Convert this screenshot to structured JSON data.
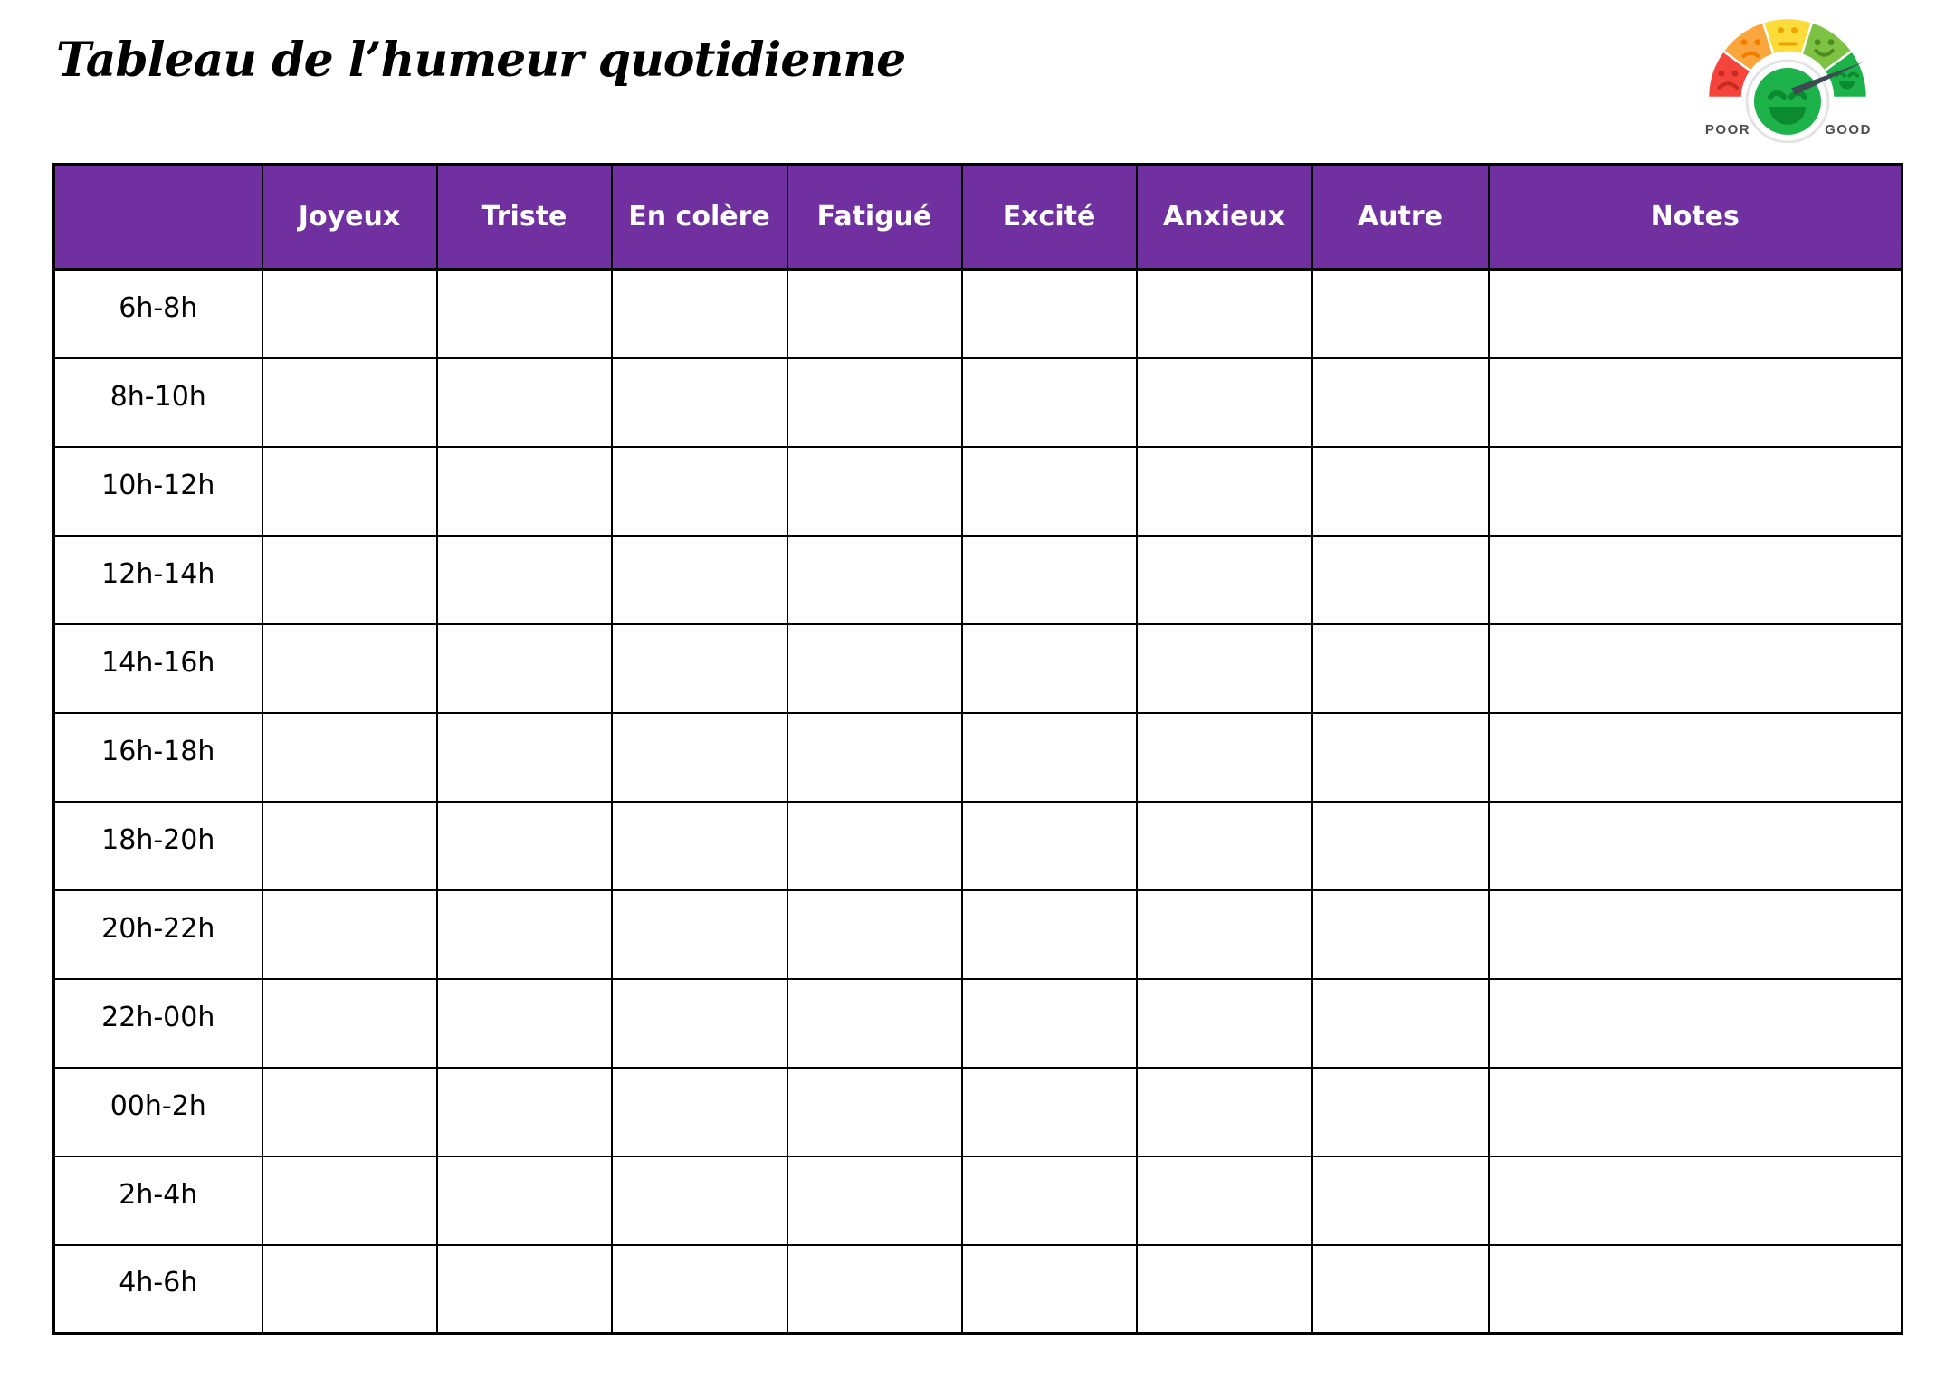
{
  "page": {
    "title": "Tableau de l’humeur quotidienne"
  },
  "mood_meter": {
    "poor_label": "POOR",
    "good_label": "GOOD",
    "segment_colors": [
      "#F4443B",
      "#FAA63C",
      "#FBDC3B",
      "#7EC243",
      "#1EB24B"
    ],
    "face_colors": [
      "#C62B24",
      "#EF7D00",
      "#EFA300",
      "#4E8C1F",
      "#0C8A30"
    ],
    "ring_color": "#E3E3E3",
    "center_face_color": "#1EB24B",
    "center_face_feature_color": "#0C8A30",
    "needle_color": "#3E4A52",
    "label_color": "#4d4d4d"
  },
  "table": {
    "header_bg": "#7030A0",
    "header_text_color": "#FFFFFF",
    "border_color": "#000000",
    "columns": [
      "",
      "Joyeux",
      "Triste",
      "En colère",
      "Fatigué",
      "Excité",
      "Anxieux",
      "Autre",
      "Notes"
    ],
    "time_slots": [
      "6h-8h",
      "8h-10h",
      "10h-12h",
      "12h-14h",
      "14h-16h",
      "16h-18h",
      "18h-20h",
      "20h-22h",
      "22h-00h",
      "00h-2h",
      "2h-4h",
      "4h-6h"
    ],
    "cell_values": []
  }
}
